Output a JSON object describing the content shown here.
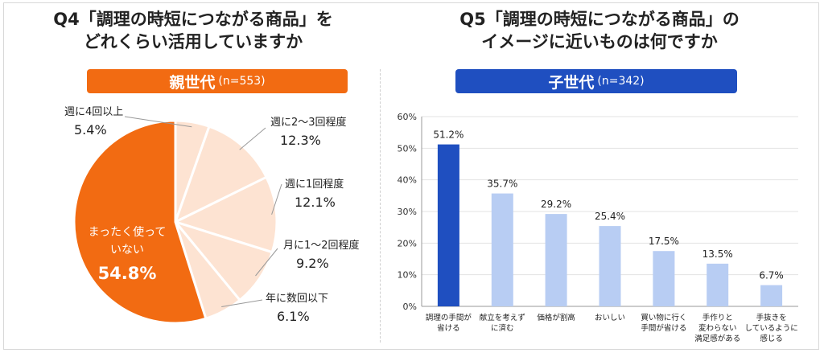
{
  "q4": {
    "title_line1": "Q4「調理の時短につながる商品」を",
    "title_line2": "どれくらい活用していますか",
    "banner_label": "親世代",
    "banner_n": "(n=553)",
    "banner_color": "#f26b12"
  },
  "q5": {
    "title_line1": "Q5「調理の時短につながる商品」の",
    "title_line2": "イメージに近いものは何ですか",
    "banner_label": "子世代",
    "banner_n": "(n=342)",
    "banner_color": "#1f4fc0"
  },
  "chart_data": [
    {
      "type": "pie",
      "labels": [
        "週に4回以上",
        "週に2〜3回程度",
        "週に1回程度",
        "月に1〜2回程度",
        "年に数回以下",
        "まったく使っていない"
      ],
      "values": [
        5.4,
        12.3,
        12.1,
        9.2,
        6.1,
        54.8
      ],
      "value_labels": [
        "5.4%",
        "12.3%",
        "12.1%",
        "9.2%",
        "6.1%",
        "54.8%"
      ],
      "colors": [
        "#fde3d2",
        "#fde3d2",
        "#fde3d2",
        "#fde3d2",
        "#fde3d2",
        "#f26b12"
      ]
    },
    {
      "type": "bar",
      "categories": [
        [
          "調理の手間が",
          "省ける"
        ],
        [
          "献立を考えず",
          "に済む"
        ],
        [
          "価格が割高"
        ],
        [
          "おいしい"
        ],
        [
          "買い物に行く",
          "手間が省ける"
        ],
        [
          "手作りと",
          "変わらない",
          "満足感がある"
        ],
        [
          "手抜きを",
          "しているように",
          "感じる"
        ]
      ],
      "values": [
        51.2,
        35.7,
        29.2,
        25.4,
        17.5,
        13.5,
        6.7
      ],
      "value_labels": [
        "51.2%",
        "35.7%",
        "29.2%",
        "25.4%",
        "17.5%",
        "13.5%",
        "6.7%"
      ],
      "colors": [
        "#1f4fc0",
        "#b8cdf3",
        "#b8cdf3",
        "#b8cdf3",
        "#b8cdf3",
        "#b8cdf3",
        "#b8cdf3"
      ],
      "yticks": [
        "0%",
        "10%",
        "20%",
        "30%",
        "40%",
        "50%",
        "60%"
      ],
      "ylim": [
        0,
        60
      ]
    }
  ]
}
